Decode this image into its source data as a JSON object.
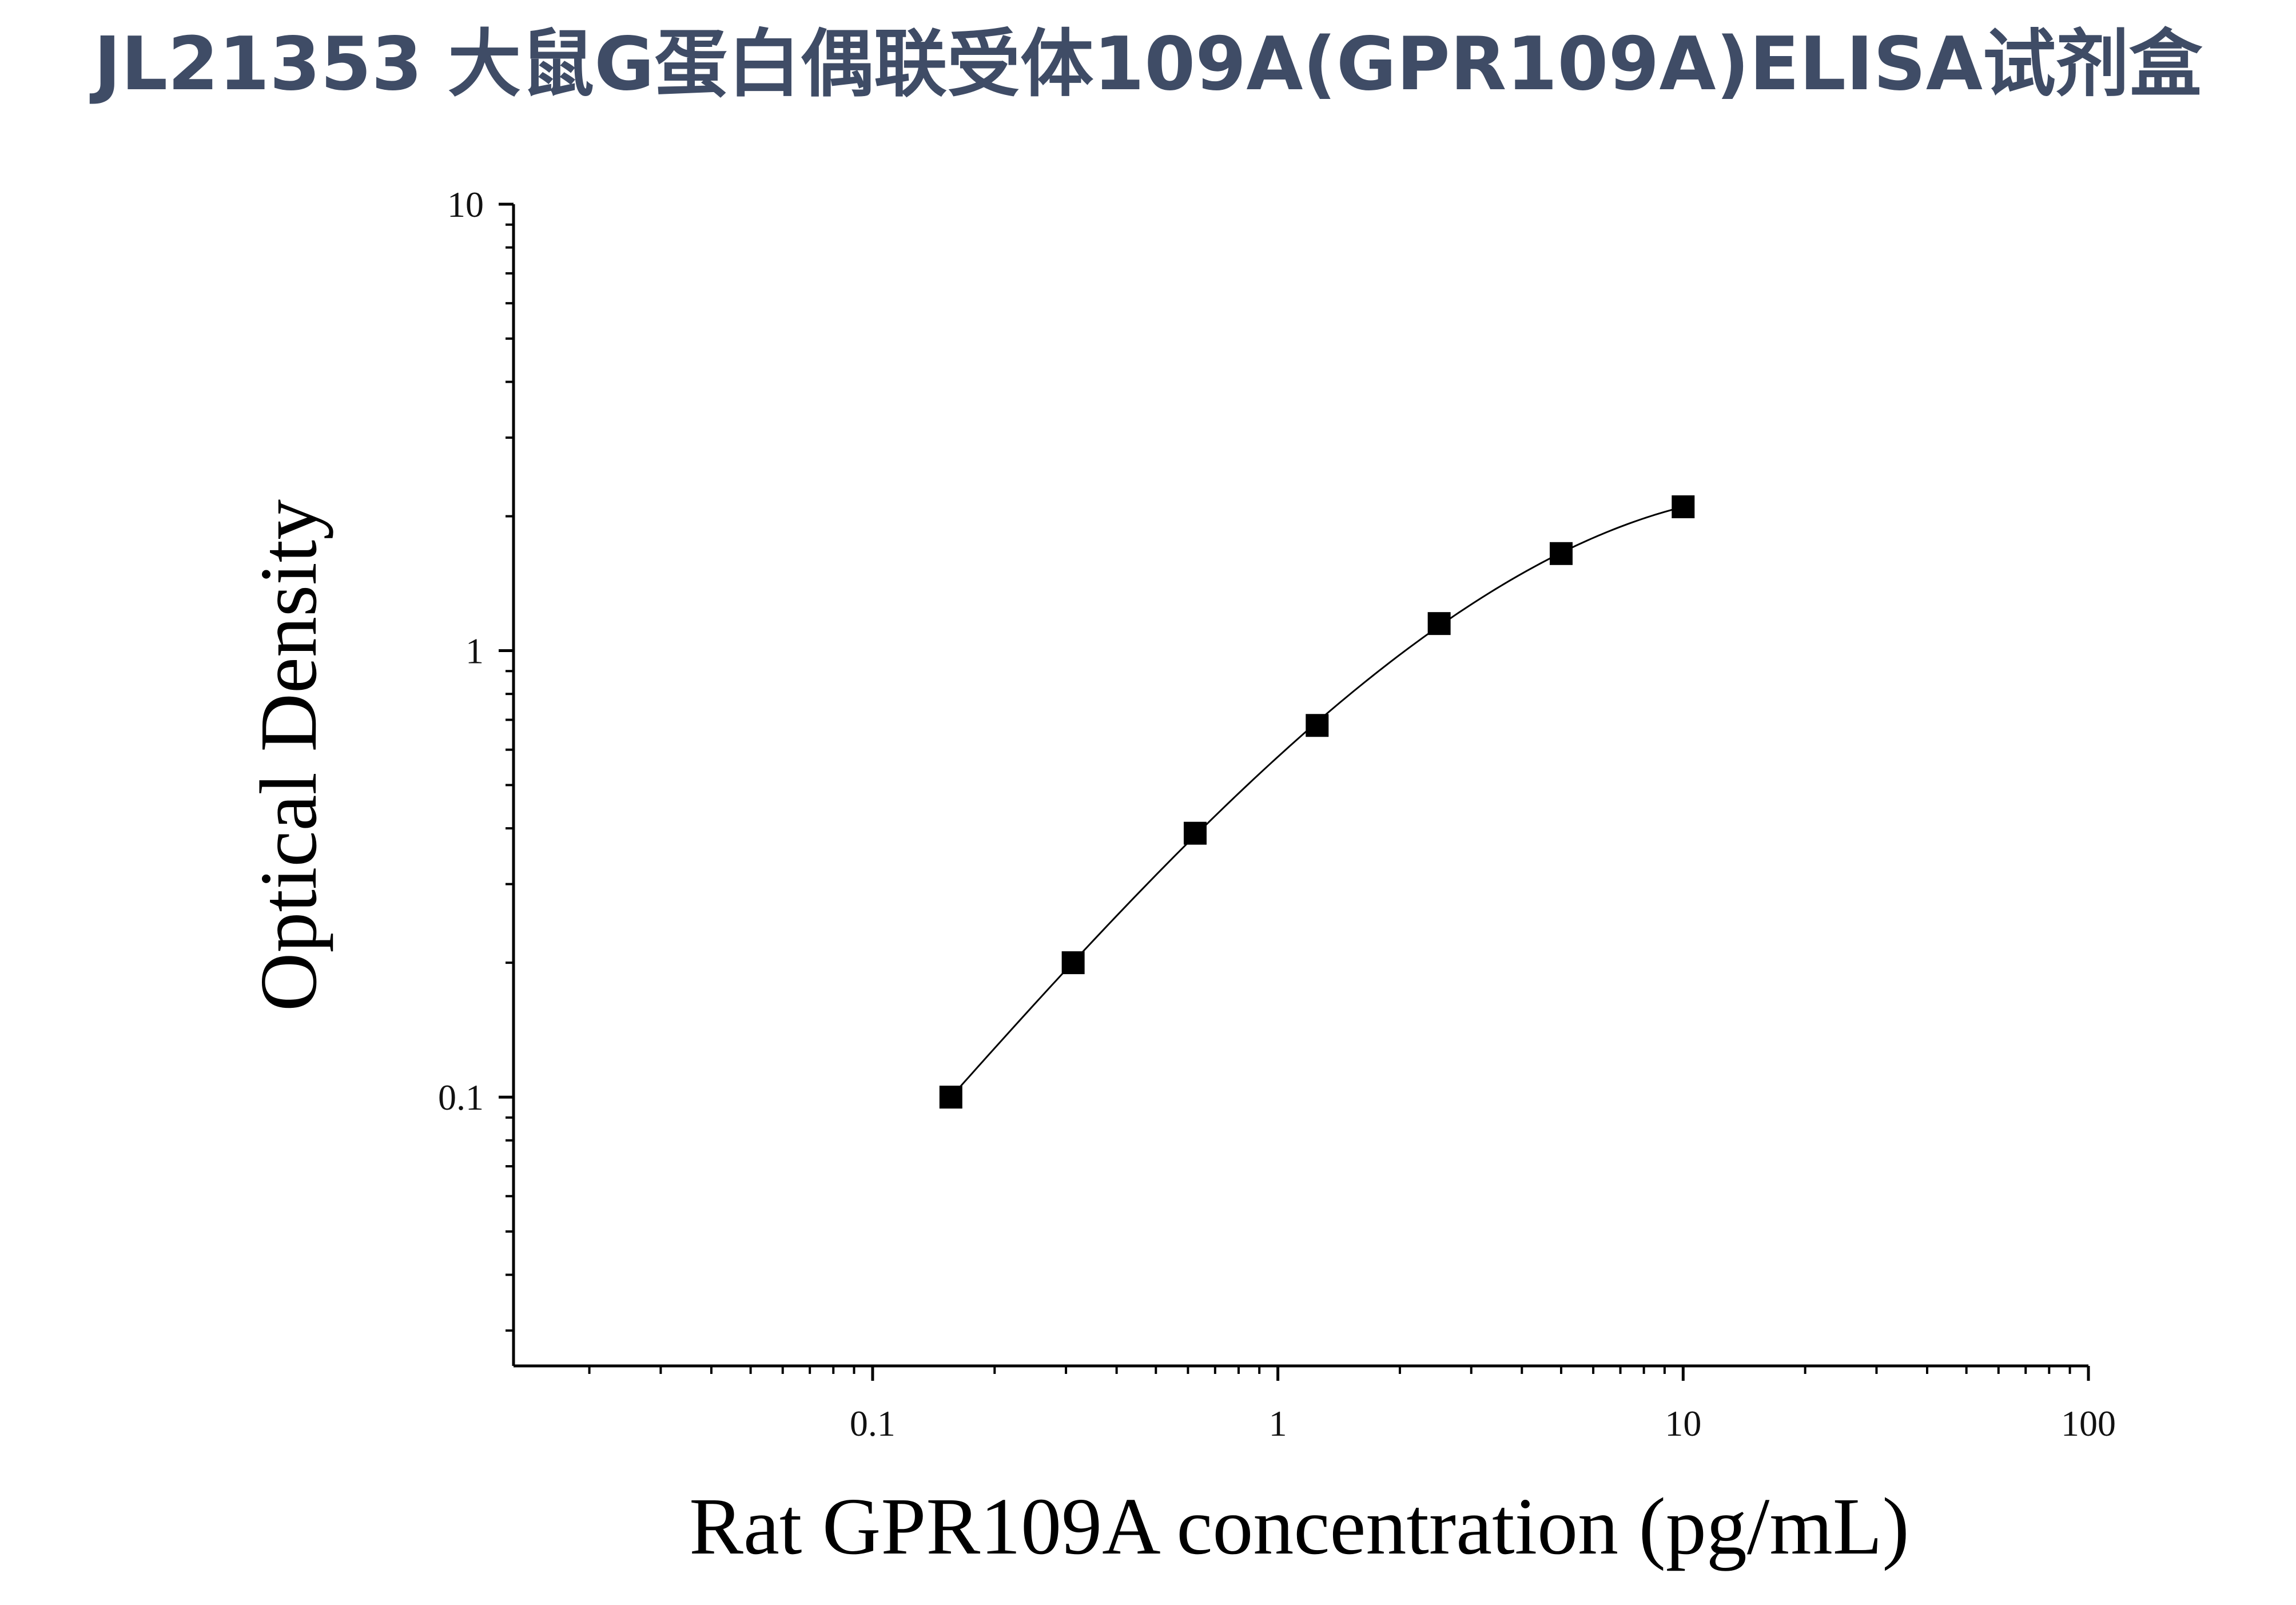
{
  "page": {
    "title": "JL21353 大鼠G蛋白偶联受体109A(GPR109A)ELISA试剂盒"
  },
  "chart_data": {
    "type": "scatter",
    "title": "JL21353 大鼠G蛋白偶联受体109A(GPR109A)ELISA试剂盒",
    "xlabel": "Rat GPR109A concentration (pg/mL)",
    "ylabel": "Optical Density",
    "x_scale": "log",
    "y_scale": "log",
    "xlim": [
      0.013,
      100
    ],
    "ylim": [
      0.025,
      10
    ],
    "x_ticks": [
      {
        "value": 0.1,
        "label": "0.1"
      },
      {
        "value": 1,
        "label": "1"
      },
      {
        "value": 10,
        "label": "10"
      },
      {
        "value": 100,
        "label": "100"
      }
    ],
    "y_ticks": [
      {
        "value": 0.1,
        "label": "0.1"
      },
      {
        "value": 1,
        "label": "1"
      },
      {
        "value": 10,
        "label": "10"
      }
    ],
    "grid": false,
    "marker": "square",
    "fit_curve": true,
    "colors": {
      "marker": "#000000",
      "axis": "#000000",
      "title": "#3f4c66"
    },
    "series": [
      {
        "x": [
          0.156,
          0.3125,
          0.625,
          1.25,
          2.5,
          5,
          10
        ],
        "y": [
          0.1,
          0.2,
          0.39,
          0.68,
          1.15,
          1.65,
          2.1
        ]
      }
    ]
  }
}
